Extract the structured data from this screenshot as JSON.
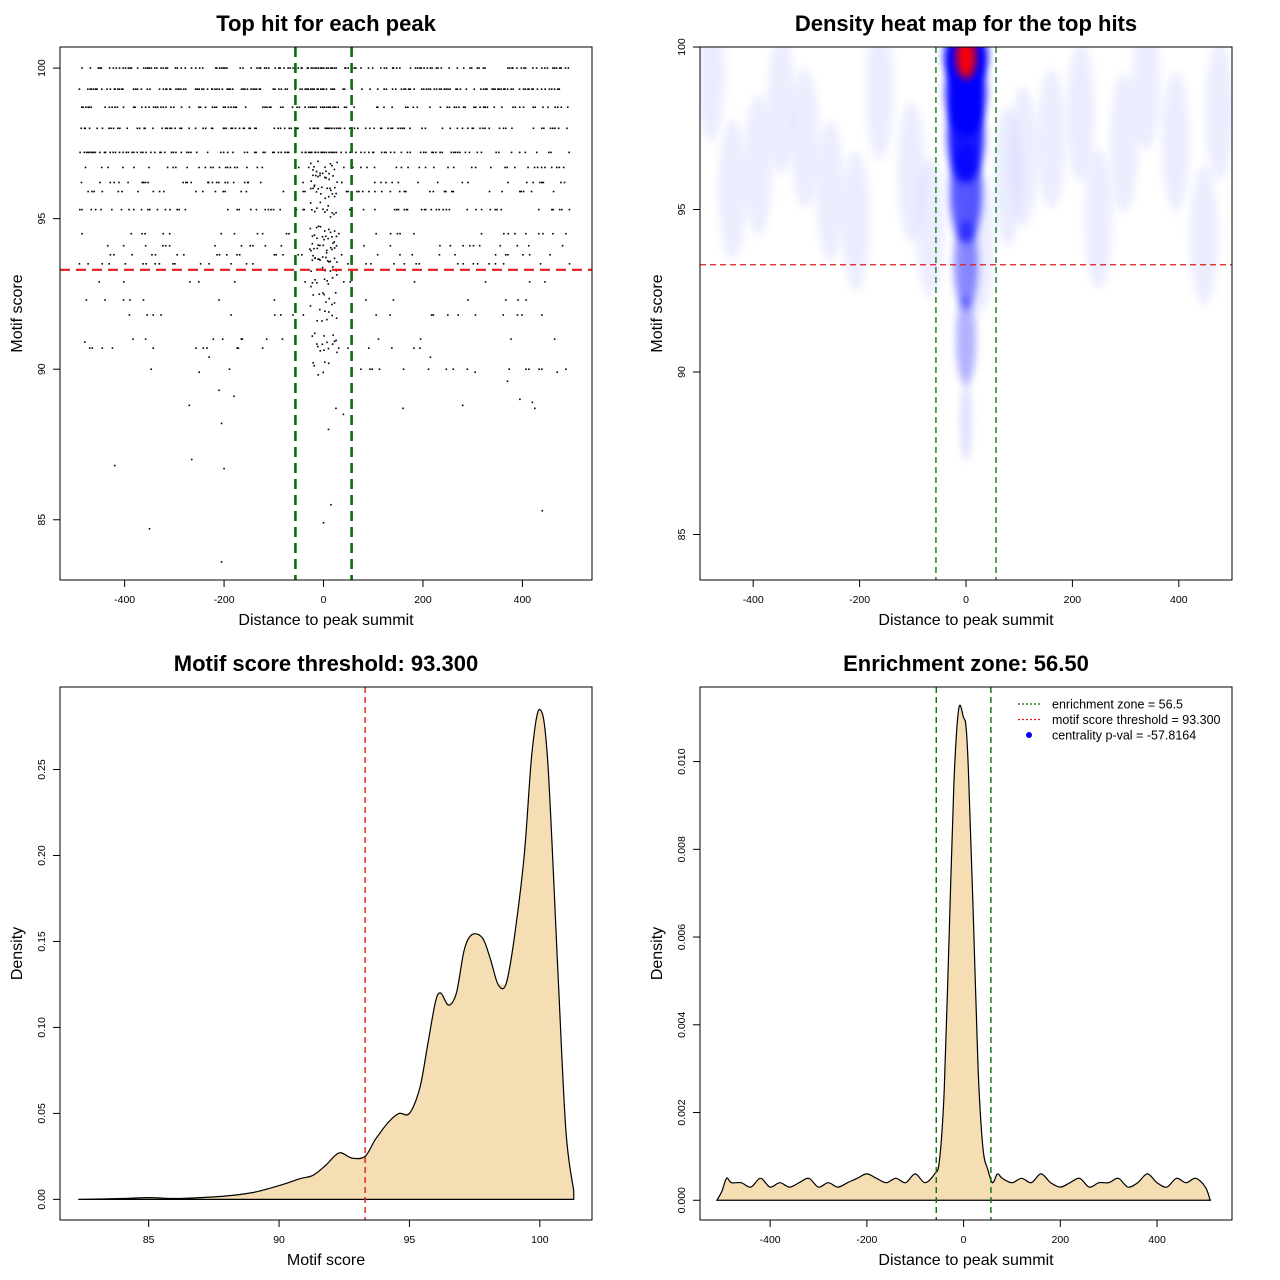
{
  "chart_data": [
    {
      "type": "scatter",
      "title": "Top hit for each peak",
      "xlabel": "Distance to peak summit",
      "ylabel": "Motif score",
      "xlim": [
        -530,
        540
      ],
      "ylim": [
        83,
        100.7
      ],
      "xticks": [
        -400,
        -200,
        0,
        200,
        400
      ],
      "yticks": [
        85,
        90,
        95,
        100
      ],
      "grid": false,
      "score_levels": [
        100,
        99.3,
        98.7,
        98,
        97.2,
        96.7,
        96.2,
        95.9,
        95.3,
        94.5,
        94.1,
        93.8,
        93.5,
        92.9,
        92.3,
        91.8,
        91.0,
        90.7,
        90.0
      ],
      "hline": {
        "y": 93.3,
        "color": "#e41a1c",
        "style": "dashed"
      },
      "vlines": {
        "x": [
          -56.5,
          56.5
        ],
        "color": "#0a6e0a",
        "style": "dashed"
      },
      "sparse_points": [
        {
          "x": -480,
          "y": 90.9
        },
        {
          "x": -465,
          "y": 90.7
        },
        {
          "x": -420,
          "y": 86.8
        },
        {
          "x": -350,
          "y": 84.7
        },
        {
          "x": -270,
          "y": 88.8
        },
        {
          "x": -265,
          "y": 87.0
        },
        {
          "x": -200,
          "y": 86.7
        },
        {
          "x": -205,
          "y": 83.6
        },
        {
          "x": -230,
          "y": 90.4
        },
        {
          "x": -210,
          "y": 89.3
        },
        {
          "x": -180,
          "y": 89.1
        },
        {
          "x": -205,
          "y": 88.2
        },
        {
          "x": -250,
          "y": 89.9
        },
        {
          "x": 15,
          "y": 85.5
        },
        {
          "x": 0,
          "y": 84.9
        },
        {
          "x": 40,
          "y": 88.5
        },
        {
          "x": 10,
          "y": 88.0
        },
        {
          "x": 25,
          "y": 88.7
        },
        {
          "x": 160,
          "y": 88.7
        },
        {
          "x": 280,
          "y": 88.8
        },
        {
          "x": 370,
          "y": 89.6
        },
        {
          "x": 395,
          "y": 89.0
        },
        {
          "x": 420,
          "y": 88.9
        },
        {
          "x": 425,
          "y": 88.7
        },
        {
          "x": 470,
          "y": 89.9
        },
        {
          "x": 440,
          "y": 85.3
        },
        {
          "x": 305,
          "y": 89.9
        },
        {
          "x": 215,
          "y": 90.4
        }
      ]
    },
    {
      "type": "heatmap",
      "title": "Density heat map for the top hits",
      "xlabel": "Distance to peak summit",
      "ylabel": "Motif score",
      "xlim": [
        -500,
        500
      ],
      "ylim": [
        83.6,
        100
      ],
      "xticks": [
        -400,
        -200,
        0,
        200,
        400
      ],
      "yticks": [
        85,
        90,
        95,
        100
      ],
      "colors": [
        "#ffffff",
        "#0000ff",
        "#ff0000"
      ],
      "hotspot": {
        "x": 0,
        "y": 99.7
      },
      "hline": {
        "y": 93.3,
        "color": "#e41a1c",
        "style": "dashed"
      },
      "vlines": {
        "x": [
          -56.5,
          56.5
        ],
        "color": "#0a6e0a",
        "style": "dashed"
      }
    },
    {
      "type": "area",
      "title": "Motif score threshold: 93.300",
      "xlabel": "Motif score",
      "ylabel": "Density",
      "xlim": [
        81.6,
        102
      ],
      "ylim": [
        -0.012,
        0.298
      ],
      "xticks": [
        85,
        90,
        95,
        100
      ],
      "yticks": [
        0.0,
        0.05,
        0.1,
        0.15,
        0.2,
        0.25
      ],
      "ytick_labels": [
        "0.00",
        "0.05",
        "0.10",
        "0.15",
        "0.20",
        "0.25"
      ],
      "fill": "#f5deb3",
      "x": [
        82.3,
        84,
        85,
        86,
        87,
        88,
        89,
        90,
        90.8,
        91.3,
        91.8,
        92.3,
        92.8,
        93.3,
        93.7,
        94.2,
        94.6,
        95.0,
        95.4,
        95.7,
        96.0,
        96.2,
        96.5,
        96.8,
        97.1,
        97.4,
        97.8,
        98.1,
        98.4,
        98.7,
        99.0,
        99.4,
        99.7,
        100.0,
        100.3,
        100.7,
        101.0,
        101.3
      ],
      "y": [
        0.0,
        0.0005,
        0.001,
        0.0005,
        0.001,
        0.002,
        0.004,
        0.008,
        0.012,
        0.014,
        0.02,
        0.027,
        0.024,
        0.025,
        0.035,
        0.045,
        0.05,
        0.05,
        0.065,
        0.09,
        0.115,
        0.12,
        0.113,
        0.12,
        0.145,
        0.154,
        0.152,
        0.14,
        0.125,
        0.125,
        0.15,
        0.2,
        0.26,
        0.285,
        0.255,
        0.13,
        0.04,
        0.005
      ],
      "vline": {
        "x": 93.3,
        "color": "#e41a1c",
        "style": "dashed"
      }
    },
    {
      "type": "area",
      "title": "Enrichment zone: 56.50",
      "xlabel": "Distance to peak summit",
      "ylabel": "Density",
      "xlim": [
        -545,
        555
      ],
      "ylim": [
        -0.00045,
        0.0117
      ],
      "xticks": [
        -400,
        -200,
        0,
        200,
        400
      ],
      "yticks": [
        0.0,
        0.002,
        0.004,
        0.006,
        0.008,
        0.01
      ],
      "ytick_labels": [
        "0.000",
        "0.002",
        "0.004",
        "0.006",
        "0.008",
        "0.010"
      ],
      "fill": "#f5deb3",
      "x": [
        -510,
        -500,
        -490,
        -480,
        -460,
        -440,
        -420,
        -400,
        -380,
        -360,
        -340,
        -320,
        -300,
        -280,
        -260,
        -240,
        -220,
        -200,
        -180,
        -160,
        -140,
        -120,
        -100,
        -80,
        -60,
        -50,
        -40,
        -30,
        -20,
        -10,
        0,
        5,
        10,
        20,
        30,
        40,
        50,
        60,
        70,
        80,
        100,
        120,
        140,
        160,
        180,
        200,
        220,
        240,
        260,
        280,
        300,
        320,
        340,
        360,
        380,
        400,
        420,
        440,
        460,
        480,
        500,
        510
      ],
      "y": [
        0.0,
        0.0002,
        0.0005,
        0.0004,
        0.0004,
        0.0003,
        0.0005,
        0.0003,
        0.0004,
        0.0003,
        0.0004,
        0.0005,
        0.0003,
        0.0004,
        0.0003,
        0.0004,
        0.0005,
        0.0006,
        0.0005,
        0.0004,
        0.0005,
        0.0004,
        0.0006,
        0.0004,
        0.0006,
        0.0009,
        0.0025,
        0.006,
        0.0095,
        0.0112,
        0.011,
        0.0108,
        0.0098,
        0.0065,
        0.003,
        0.0012,
        0.0007,
        0.0004,
        0.0006,
        0.0005,
        0.0004,
        0.0005,
        0.0004,
        0.0006,
        0.0004,
        0.0003,
        0.0004,
        0.0005,
        0.0003,
        0.0004,
        0.0004,
        0.0005,
        0.0003,
        0.0004,
        0.0006,
        0.0004,
        0.0003,
        0.0005,
        0.0004,
        0.0005,
        0.0003,
        0.0
      ],
      "vlines": {
        "x": [
          -56.5,
          56.5
        ],
        "color": "#0a6e0a",
        "style": "dashed"
      },
      "legend": {
        "position": "top-right",
        "entries": [
          {
            "label": "enrichment zone = 56.5",
            "color": "#0a6e0a",
            "kind": "dotted-line"
          },
          {
            "label": "motif score threshold = 93.300",
            "color": "#e41a1c",
            "kind": "dotted-line"
          },
          {
            "label": "centrality p-val = -57.8164",
            "color": "#0000ff",
            "kind": "point"
          }
        ]
      }
    }
  ]
}
